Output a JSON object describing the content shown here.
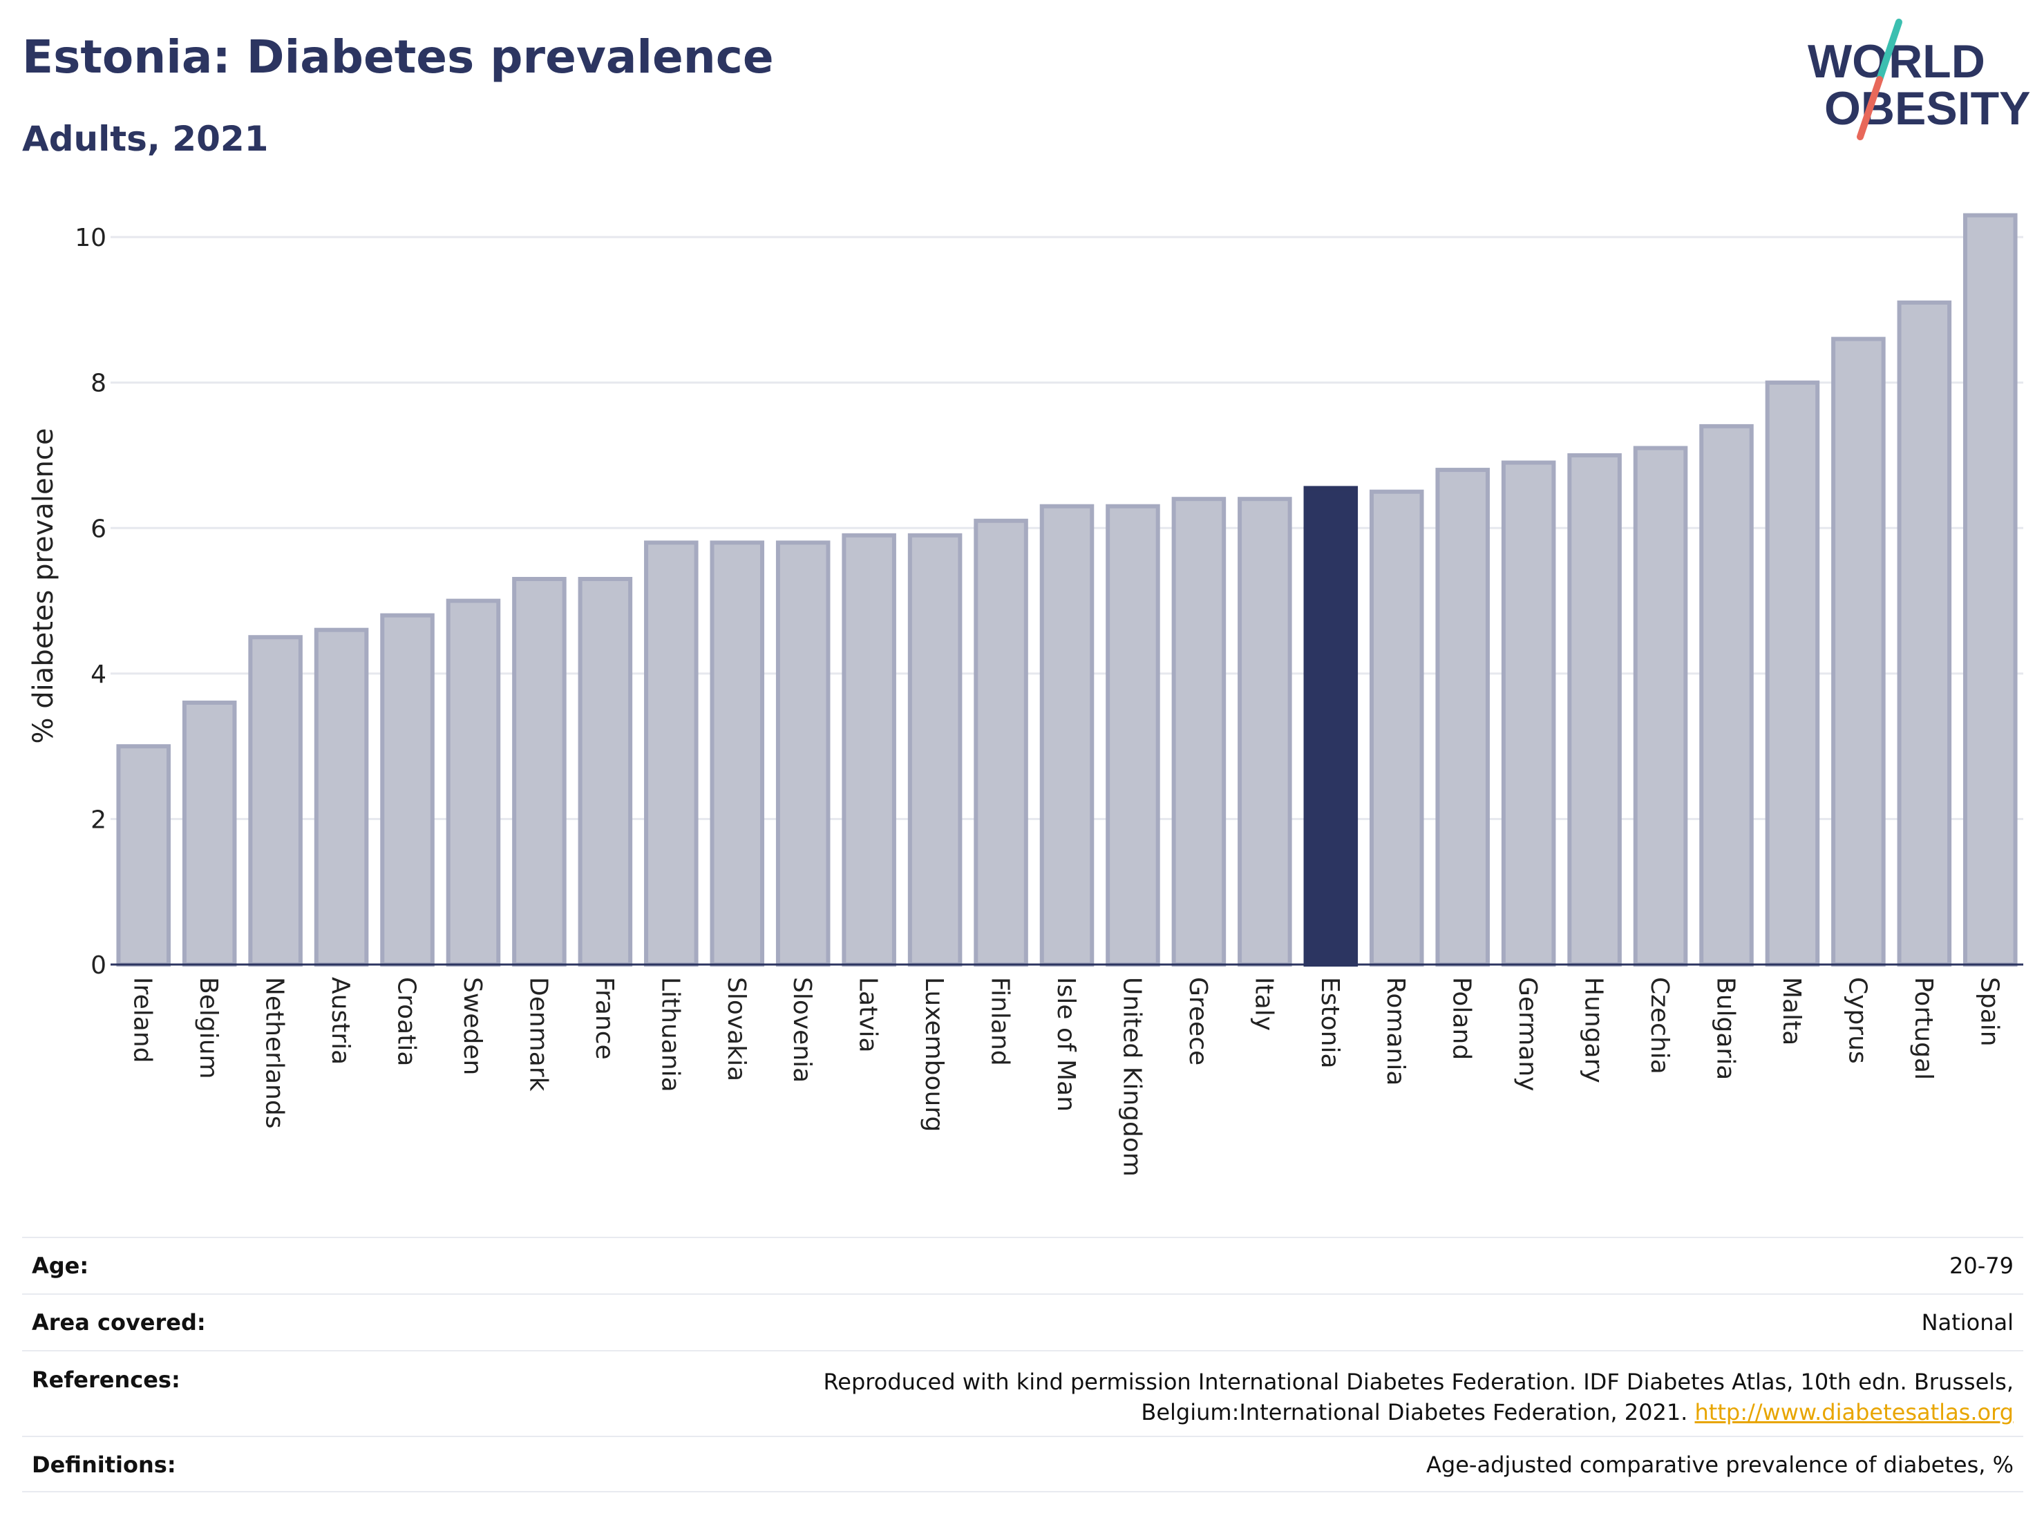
{
  "header": {
    "title": "Estonia: Diabetes prevalence",
    "subtitle": "Adults, 2021",
    "logo_line1": "WORLD",
    "logo_line2": "OBESITY"
  },
  "colors": {
    "bar_fill": "#bfc2cf",
    "bar_stroke": "#a6aac0",
    "highlight": "#2c3561",
    "logo_teal": "#3bbfb0",
    "logo_red": "#e8685a",
    "text_dark": "#2c3561"
  },
  "chart_data": {
    "type": "bar",
    "ylabel": "% diabetes prevalence",
    "ylim": [
      0,
      10.6
    ],
    "yticks": [
      0,
      2,
      4,
      6,
      8,
      10
    ],
    "grid": true,
    "highlight": "Estonia",
    "categories": [
      "Ireland",
      "Belgium",
      "Netherlands",
      "Austria",
      "Croatia",
      "Sweden",
      "Denmark",
      "France",
      "Lithuania",
      "Slovakia",
      "Slovenia",
      "Latvia",
      "Luxembourg",
      "Finland",
      "Isle of Man",
      "United Kingdom",
      "Greece",
      "Italy",
      "Estonia",
      "Romania",
      "Poland",
      "Germany",
      "Hungary",
      "Czechia",
      "Bulgaria",
      "Malta",
      "Cyprus",
      "Portugal",
      "Spain"
    ],
    "values": [
      3.0,
      3.6,
      4.5,
      4.6,
      4.8,
      5.0,
      5.3,
      5.3,
      5.8,
      5.8,
      5.8,
      5.9,
      5.9,
      6.1,
      6.3,
      6.3,
      6.4,
      6.4,
      6.55,
      6.5,
      6.8,
      6.9,
      7.0,
      7.1,
      7.4,
      8.0,
      8.6,
      9.1,
      10.3
    ]
  },
  "info": {
    "age_label": "Age:",
    "age_value": "20-79",
    "area_label": "Area covered:",
    "area_value": "National",
    "references_label": "References:",
    "references_value": "Reproduced with kind permission International Diabetes Federation.  IDF Diabetes Atlas, 10th edn. Brussels, Belgium:International Diabetes Federation, 2021.",
    "references_link": "http://www.diabetesatlas.org",
    "definitions_label": "Definitions:",
    "definitions_value": "Age-adjusted comparative prevalence of diabetes, %"
  }
}
